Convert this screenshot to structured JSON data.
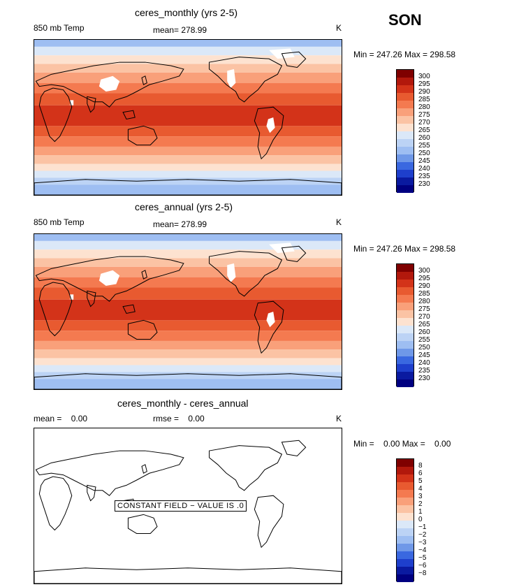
{
  "season": "SON",
  "panels": [
    {
      "title": "ceres_monthly (yrs 2-5)",
      "field_label": "850 mb Temp",
      "stat_label": "mean= 278.99",
      "unit": "K",
      "minmax": "Min = 247.26 Max = 298.58",
      "colorbar": [
        "300",
        "295",
        "290",
        "285",
        "280",
        "275",
        "270",
        "265",
        "260",
        "255",
        "250",
        "245",
        "240",
        "235",
        "230"
      ],
      "type": "temperature"
    },
    {
      "title": "ceres_annual (yrs 2-5)",
      "field_label": "850 mb Temp",
      "stat_label": "mean= 278.99",
      "unit": "K",
      "minmax": "Min = 247.26 Max = 298.58",
      "colorbar": [
        "300",
        "295",
        "290",
        "285",
        "280",
        "275",
        "270",
        "265",
        "260",
        "255",
        "250",
        "245",
        "240",
        "235",
        "230"
      ],
      "type": "temperature"
    },
    {
      "title": "ceres_monthly - ceres_annual",
      "field_label": "mean =    0.00",
      "stat_label": "rmse =    0.00",
      "unit": "K",
      "minmax": "Min =    0.00 Max =    0.00",
      "colorbar": [
        "8",
        "6",
        "5",
        "4",
        "3",
        "2",
        "1",
        "0",
        "−1",
        "−2",
        "−3",
        "−4",
        "−5",
        "−6",
        "−8"
      ],
      "type": "difference",
      "annotation": "CONSTANT FIELD − VALUE IS .0"
    }
  ],
  "colors": {
    "scale": [
      "#7f0000",
      "#b2180c",
      "#d33319",
      "#e85a30",
      "#f47a50",
      "#f9a07a",
      "#fbc3a4",
      "#fde2d0",
      "#dbe8f8",
      "#bcd3f5",
      "#9ebef2",
      "#6f98e8",
      "#3a68e0",
      "#1e3fcc",
      "#0a1aa0",
      "#000080"
    ]
  }
}
